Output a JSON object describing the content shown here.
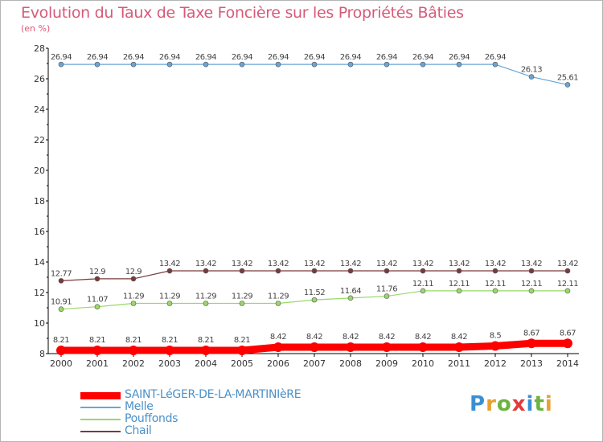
{
  "header": {
    "title": "Evolution du Taux de Taxe Foncière sur les Propriétés Bâties",
    "unit": "(en %)"
  },
  "logo": {
    "p": "P",
    "r": "r",
    "o": "o",
    "x": "x",
    "i1": "i",
    "t": "t",
    "i2": "i"
  },
  "chart_data": {
    "type": "line",
    "title": "Evolution du Taux de Taxe Foncière sur les Propriétés Bâties",
    "ylabel": "(en %)",
    "ylim": [
      8,
      28
    ],
    "yticks": [
      8,
      10,
      12,
      14,
      16,
      18,
      20,
      22,
      24,
      26,
      28
    ],
    "grid": false,
    "legend_position": "bottom-left",
    "x": [
      2000,
      2001,
      2002,
      2003,
      2004,
      2005,
      2006,
      2007,
      2008,
      2009,
      2010,
      2011,
      2012,
      2013,
      2014
    ],
    "series": [
      {
        "name": "SAINT-LéGER-DE-LA-MARTINIèRE",
        "color": "#ff0000",
        "values": [
          8.21,
          8.21,
          8.21,
          8.21,
          8.21,
          8.21,
          8.42,
          8.42,
          8.42,
          8.42,
          8.42,
          8.42,
          8.5,
          8.67,
          8.67
        ],
        "labels": [
          "8.21",
          "8.21",
          "8.21",
          "8.21",
          "8.21",
          "8.21",
          "8.42",
          "8.42",
          "8.42",
          "8.42",
          "8.42",
          "8.42",
          "8.5",
          "8.67",
          "8.67"
        ]
      },
      {
        "name": "Melle",
        "color": "#6aa5d6",
        "values": [
          26.94,
          26.94,
          26.94,
          26.94,
          26.94,
          26.94,
          26.94,
          26.94,
          26.94,
          26.94,
          26.94,
          26.94,
          26.94,
          26.13,
          25.61
        ],
        "labels": [
          "26.94",
          "26.94",
          "26.94",
          "26.94",
          "26.94",
          "26.94",
          "26.94",
          "26.94",
          "26.94",
          "26.94",
          "26.94",
          "26.94",
          "26.94",
          "26.13",
          "25.61"
        ]
      },
      {
        "name": "Pouffonds",
        "color": "#99d966",
        "values": [
          10.91,
          11.07,
          11.29,
          11.29,
          11.29,
          11.29,
          11.29,
          11.52,
          11.64,
          11.76,
          12.11,
          12.11,
          12.11,
          12.11,
          12.11
        ],
        "labels": [
          "10.91",
          "11.07",
          "11.29",
          "11.29",
          "11.29",
          "11.29",
          "11.29",
          "11.52",
          "11.64",
          "11.76",
          "12.11",
          "12.11",
          "12.11",
          "12.11",
          "12.11"
        ]
      },
      {
        "name": "Chail",
        "color": "#7a3a3a",
        "values": [
          12.77,
          12.9,
          12.9,
          13.42,
          13.42,
          13.42,
          13.42,
          13.42,
          13.42,
          13.42,
          13.42,
          13.42,
          13.42,
          13.42,
          13.42
        ],
        "labels": [
          "12.77",
          "12.9",
          "12.9",
          "13.42",
          "13.42",
          "13.42",
          "13.42",
          "13.42",
          "13.42",
          "13.42",
          "13.42",
          "13.42",
          "13.42",
          "13.42",
          "13.42"
        ]
      }
    ]
  }
}
